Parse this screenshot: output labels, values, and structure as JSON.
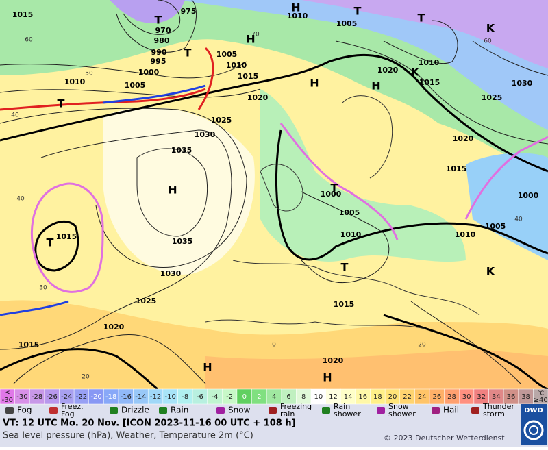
{
  "map": {
    "pressure_labels": [
      "1015",
      "975",
      "970",
      "980",
      "990",
      "995",
      "1000",
      "1005",
      "1010",
      "1005",
      "1010",
      "1015",
      "1020",
      "1025",
      "1030",
      "1035",
      "1035",
      "1030",
      "1025",
      "1020",
      "1015",
      "1015",
      "1010",
      "1005",
      "1020",
      "1010",
      "1015",
      "1030",
      "1025",
      "1020",
      "1015",
      "1000",
      "1005",
      "1010",
      "1015",
      "1020",
      "1000",
      "1005",
      "1010"
    ],
    "temperature_labels": [
      "60",
      "50",
      "40",
      "40",
      "30",
      "20",
      "70",
      "60",
      "40",
      "20",
      "0"
    ],
    "systems": [
      "H",
      "T",
      "T",
      "T",
      "H",
      "T",
      "H",
      "H",
      "T",
      "H",
      "T",
      "T",
      "T",
      "H",
      "H",
      "K",
      "K",
      "K"
    ]
  },
  "scale": {
    "below": "<",
    "cells": [
      {
        "label": "-30",
        "color": "#e078e8"
      },
      {
        "label": "-30",
        "color": "#d890e8"
      },
      {
        "label": "-28",
        "color": "#c898e8"
      },
      {
        "label": "-26",
        "color": "#b898ec"
      },
      {
        "label": "-24",
        "color": "#a8a0f0"
      },
      {
        "label": "-22",
        "color": "#98a0f4"
      },
      {
        "label": "-20",
        "color": "#8898f4"
      },
      {
        "label": "-18",
        "color": "#88a8f8"
      },
      {
        "label": "-16",
        "color": "#90b8f8"
      },
      {
        "label": "-14",
        "color": "#98c8f8"
      },
      {
        "label": "-12",
        "color": "#a0d8f8"
      },
      {
        "label": "-10",
        "color": "#a8e4f8"
      },
      {
        "label": "-8",
        "color": "#b0f0f0"
      },
      {
        "label": "-6",
        "color": "#b8f0e0"
      },
      {
        "label": "-4",
        "color": "#c0f4d0"
      },
      {
        "label": "-2",
        "color": "#c8f8c8"
      },
      {
        "label": "0",
        "color": "#60d060"
      },
      {
        "label": "2",
        "color": "#80e080"
      },
      {
        "label": "4",
        "color": "#a0e8a0"
      },
      {
        "label": "6",
        "color": "#c0f0c0"
      },
      {
        "label": "8",
        "color": "#e0f8d8"
      },
      {
        "label": "10",
        "color": "#ffffff"
      },
      {
        "label": "12",
        "color": "#ffffe0"
      },
      {
        "label": "14",
        "color": "#ffffc8"
      },
      {
        "label": "16",
        "color": "#fff8a8"
      },
      {
        "label": "18",
        "color": "#fff088"
      },
      {
        "label": "20",
        "color": "#ffe478"
      },
      {
        "label": "22",
        "color": "#ffd470"
      },
      {
        "label": "24",
        "color": "#ffc468"
      },
      {
        "label": "26",
        "color": "#ffb068"
      },
      {
        "label": "28",
        "color": "#ffa070"
      },
      {
        "label": "30",
        "color": "#ff9080"
      },
      {
        "label": "32",
        "color": "#f08080"
      },
      {
        "label": "34",
        "color": "#e08888"
      },
      {
        "label": "36",
        "color": "#d09088"
      },
      {
        "label": "38",
        "color": "#c09898"
      },
      {
        "label": "≥40",
        "color": "#b8a8a8"
      }
    ],
    "unit": "°C"
  },
  "legend": [
    {
      "lines": [
        "Fog"
      ]
    },
    {
      "lines": [
        "Freez.",
        "Fog"
      ]
    },
    {
      "lines": [
        "Drizzle"
      ]
    },
    {
      "lines": [
        "Rain"
      ]
    },
    {
      "lines": [
        "Snow"
      ]
    },
    {
      "lines": [
        "Freezing",
        "rain"
      ]
    },
    {
      "lines": [
        "Rain",
        "shower"
      ]
    },
    {
      "lines": [
        "Snow",
        "shower"
      ]
    },
    {
      "lines": [
        "Hail"
      ]
    },
    {
      "lines": [
        "Thunder",
        "storm"
      ]
    }
  ],
  "footer": {
    "valid_time": "VT: 12 UTC Mo.  20 Nov. [ICON 2023-11-16  00 UTC + 108 h]",
    "subtitle": "Sea level pressure (hPa), Weather, Temperature 2m (°C)",
    "copyright": "© 2023 Deutscher Wetterdienst",
    "logo": "DWD"
  }
}
